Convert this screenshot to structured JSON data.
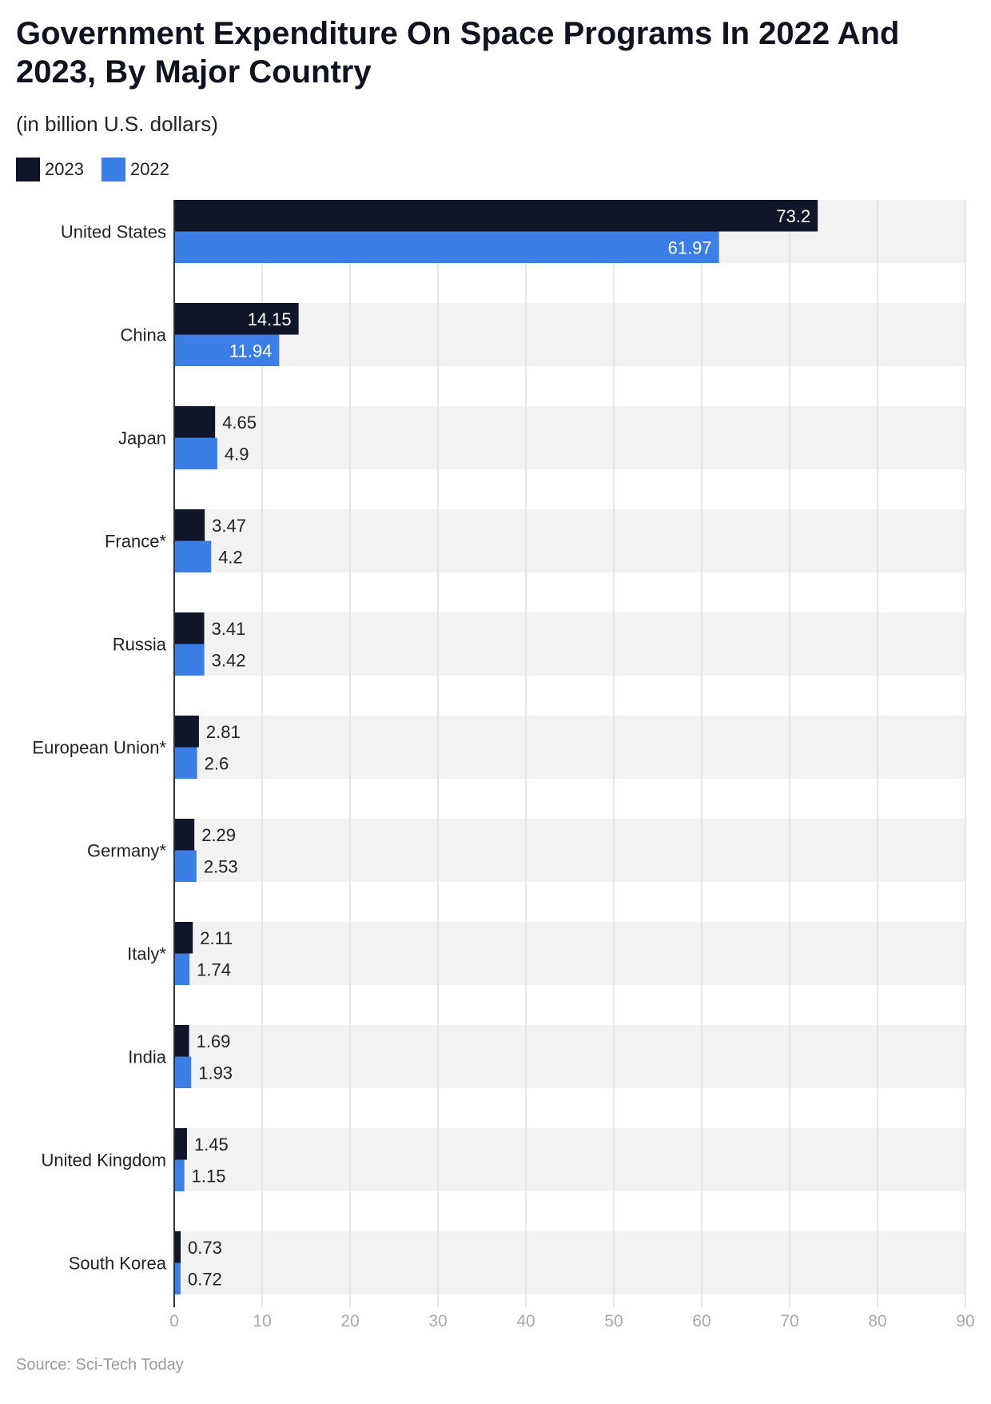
{
  "title": "Government Expenditure On Space Programs In 2022 And 2023, By Major Country",
  "subtitle": "(in billion U.S. dollars)",
  "source": "Source: Sci-Tech Today",
  "colors": {
    "2023": "#0f1629",
    "2022": "#3b7ee6",
    "band": "#f2f2f2",
    "grid": "#e0e0e0",
    "axis": "#333333"
  },
  "chart_data": {
    "type": "bar",
    "orientation": "horizontal",
    "categories": [
      "United States",
      "China",
      "Japan",
      "France*",
      "Russia",
      "European Union*",
      "Germany*",
      "Italy*",
      "India",
      "United Kingdom",
      "South Korea"
    ],
    "series": [
      {
        "name": "2023",
        "values": [
          73.2,
          14.15,
          4.65,
          3.47,
          3.41,
          2.81,
          2.29,
          2.11,
          1.69,
          1.45,
          0.73
        ]
      },
      {
        "name": "2022",
        "values": [
          61.97,
          11.94,
          4.9,
          4.2,
          3.42,
          2.6,
          2.53,
          1.74,
          1.93,
          1.15,
          0.72
        ]
      }
    ],
    "xlim": [
      0,
      90
    ],
    "xticks": [
      0,
      10,
      20,
      30,
      40,
      50,
      60,
      70,
      80,
      90
    ],
    "grid": true,
    "legend_position": "top-left"
  }
}
